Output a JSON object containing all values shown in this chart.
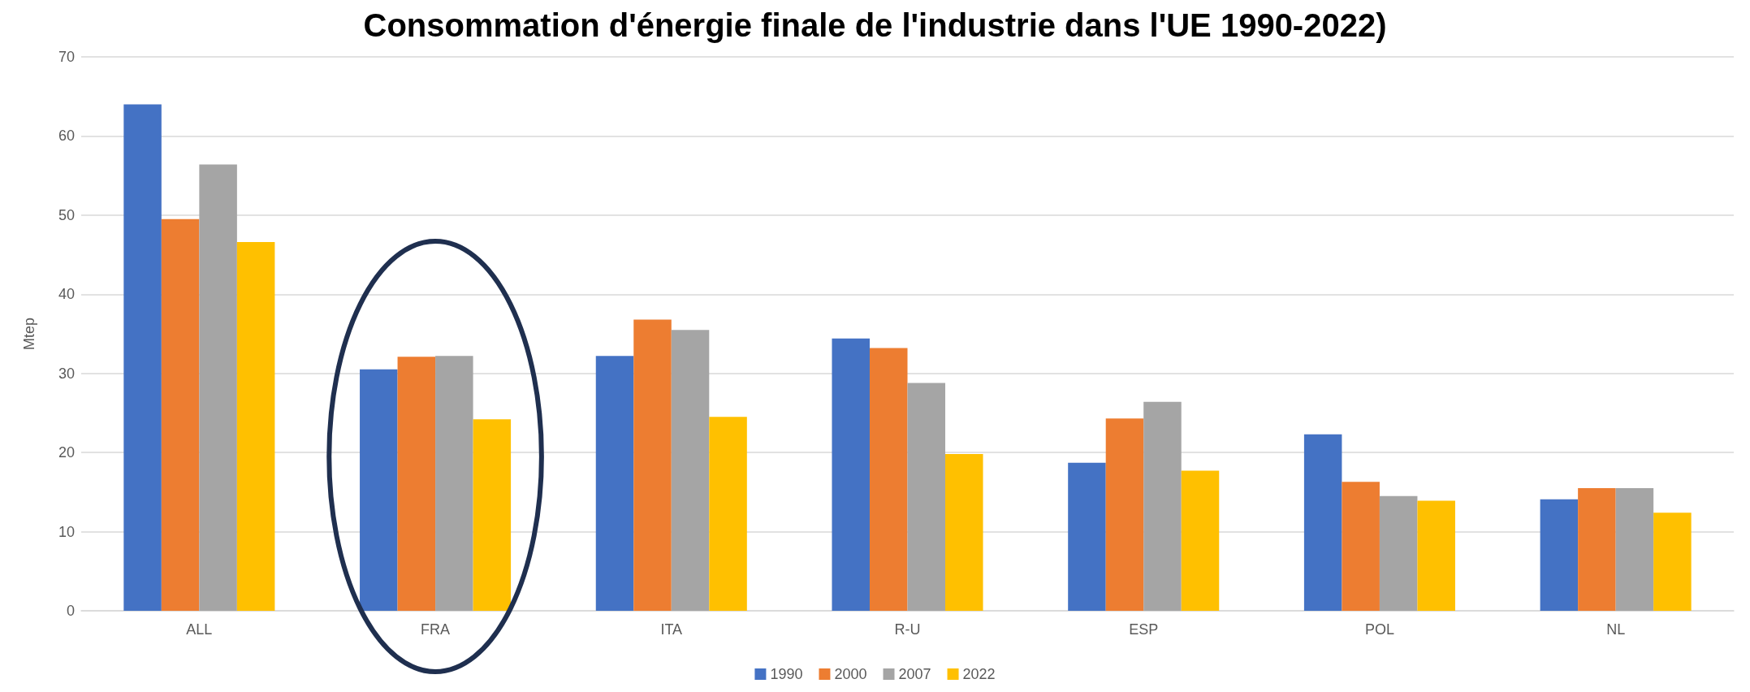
{
  "chart_data": {
    "type": "bar",
    "title": "Consommation d'énergie finale de l'industrie dans l'UE 1990-2022)",
    "ylabel": "Mtep",
    "categories": [
      "ALL",
      "FRA",
      "ITA",
      "R-U",
      "ESP",
      "POL",
      "NL"
    ],
    "series": [
      {
        "name": "1990",
        "color": "#4472c4",
        "values": [
          64.0,
          30.5,
          32.2,
          34.4,
          18.7,
          22.3,
          14.1
        ]
      },
      {
        "name": "2000",
        "color": "#ed7d31",
        "values": [
          49.5,
          32.1,
          36.8,
          33.2,
          24.3,
          16.3,
          15.5
        ]
      },
      {
        "name": "2007",
        "color": "#a5a5a5",
        "values": [
          56.4,
          32.2,
          35.5,
          28.8,
          26.4,
          14.5,
          15.5
        ]
      },
      {
        "name": "2022",
        "color": "#ffc000",
        "values": [
          46.6,
          24.2,
          24.5,
          19.8,
          17.7,
          13.9,
          12.4
        ]
      }
    ],
    "ylim": [
      0,
      70
    ],
    "yticks": [
      0,
      10,
      20,
      30,
      40,
      50,
      60,
      70
    ],
    "grid": "y",
    "legend": "bottom"
  }
}
